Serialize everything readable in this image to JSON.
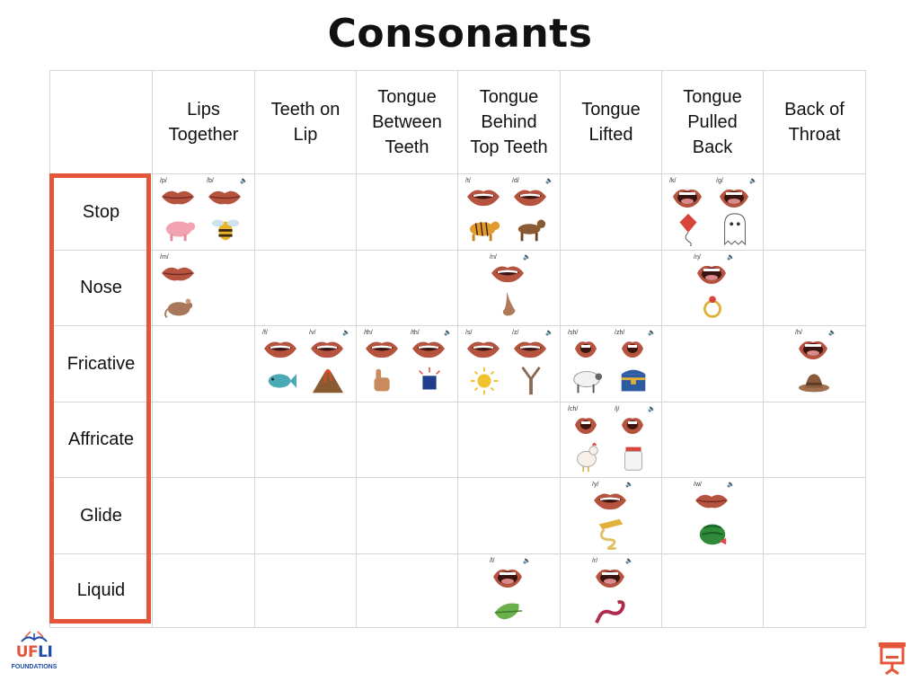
{
  "title": "Consonants",
  "columns": [
    [
      "Lips",
      "Together"
    ],
    [
      "Teeth on",
      "Lip"
    ],
    [
      "Tongue",
      "Between",
      "Teeth"
    ],
    [
      "Tongue",
      "Behind",
      "Top Teeth"
    ],
    [
      "Tongue",
      "Lifted"
    ],
    [
      "Tongue",
      "Pulled",
      "Back"
    ],
    [
      "Back of",
      "Throat"
    ]
  ],
  "rows": [
    "Stop",
    "Nose",
    "Fricative",
    "Affricate",
    "Glide",
    "Liquid"
  ],
  "sounds": [
    {
      "label": "/p/",
      "row": 0,
      "col": 0,
      "slot": 0,
      "mouth": "closed",
      "picture": "pig-icon"
    },
    {
      "label": "/b/",
      "row": 0,
      "col": 0,
      "slot": 1,
      "mouth": "closed",
      "picture": "bee-icon"
    },
    {
      "label": "/t/",
      "row": 0,
      "col": 3,
      "slot": 0,
      "mouth": "teeth",
      "picture": "tiger-icon"
    },
    {
      "label": "/d/",
      "row": 0,
      "col": 3,
      "slot": 1,
      "mouth": "teeth",
      "picture": "dog-icon"
    },
    {
      "label": "/k/",
      "row": 0,
      "col": 5,
      "slot": 0,
      "mouth": "open",
      "picture": "kite-icon"
    },
    {
      "label": "/g/",
      "row": 0,
      "col": 5,
      "slot": 1,
      "mouth": "open",
      "picture": "ghost-icon"
    },
    {
      "label": "/m/",
      "row": 1,
      "col": 0,
      "slot": 0,
      "mouth": "closed",
      "picture": "mouse-icon"
    },
    {
      "label": "/n/",
      "row": 1,
      "col": 3,
      "slot": -1,
      "mouth": "teeth",
      "picture": "nose-icon"
    },
    {
      "label": "/ŋ/",
      "row": 1,
      "col": 5,
      "slot": -1,
      "mouth": "open",
      "picture": "ring-icon"
    },
    {
      "label": "/f/",
      "row": 2,
      "col": 1,
      "slot": 0,
      "mouth": "teeth",
      "picture": "fish-icon"
    },
    {
      "label": "/v/",
      "row": 2,
      "col": 1,
      "slot": 1,
      "mouth": "teeth",
      "picture": "volcano-icon"
    },
    {
      "label": "/th/",
      "row": 2,
      "col": 2,
      "slot": 0,
      "mouth": "teeth",
      "picture": "thumb-icon"
    },
    {
      "label": "/th/",
      "row": 2,
      "col": 2,
      "slot": 1,
      "mouth": "teeth",
      "picture": "this-cube-icon"
    },
    {
      "label": "/s/",
      "row": 2,
      "col": 3,
      "slot": 0,
      "mouth": "teeth",
      "picture": "sun-icon"
    },
    {
      "label": "/z/",
      "row": 2,
      "col": 3,
      "slot": 1,
      "mouth": "teeth",
      "picture": "zipper-icon"
    },
    {
      "label": "/sh/",
      "row": 2,
      "col": 4,
      "slot": 0,
      "mouth": "round",
      "picture": "sheep-icon"
    },
    {
      "label": "/zh/",
      "row": 2,
      "col": 4,
      "slot": 1,
      "mouth": "round",
      "picture": "treasure-icon"
    },
    {
      "label": "/h/",
      "row": 2,
      "col": 6,
      "slot": -1,
      "mouth": "open",
      "picture": "hat-icon"
    },
    {
      "label": "/ch/",
      "row": 3,
      "col": 4,
      "slot": 0,
      "mouth": "round",
      "picture": "chicken-icon"
    },
    {
      "label": "/j/",
      "row": 3,
      "col": 4,
      "slot": 1,
      "mouth": "round",
      "picture": "jar-icon"
    },
    {
      "label": "/y/",
      "row": 4,
      "col": 4,
      "slot": -1,
      "mouth": "teeth",
      "picture": "yarn-icon"
    },
    {
      "label": "/w/",
      "row": 4,
      "col": 5,
      "slot": -1,
      "mouth": "closed",
      "picture": "watermelon-icon"
    },
    {
      "label": "/l/",
      "row": 5,
      "col": 3,
      "slot": -1,
      "mouth": "open",
      "picture": "leaf-icon"
    },
    {
      "label": "/r/",
      "row": 5,
      "col": 4,
      "slot": -1,
      "mouth": "open",
      "picture": "rope-icon"
    }
  ],
  "logo": {
    "line1a": "UF",
    "line1b": "LI",
    "line2": "FOUNDATIONS"
  },
  "colors": {
    "accent": "#e4553a",
    "lips": "#b5533f",
    "grid": "#d6d6d6",
    "logo_blue": "#1f4aa8"
  }
}
